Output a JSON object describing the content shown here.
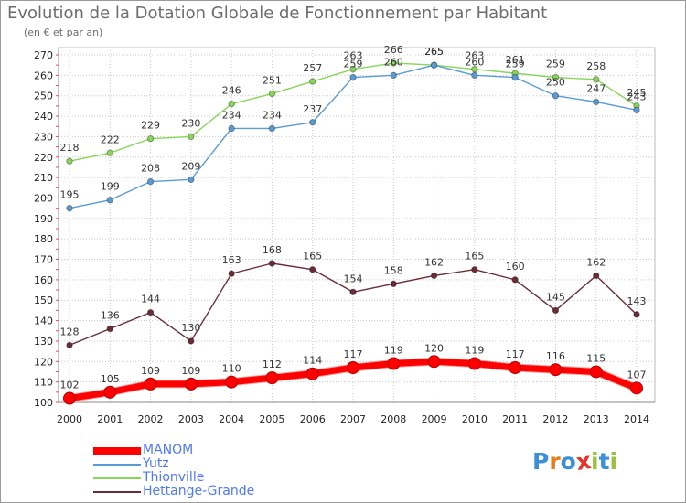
{
  "title": "Evolution de la Dotation Globale de Fonctionnement par Habitant",
  "subtitle": "(en € et par an)",
  "brand": {
    "text": "Proxiti",
    "letters": [
      "P",
      "r",
      "o",
      "x",
      "i",
      "t",
      "i"
    ],
    "colors": [
      "#3c8fd6",
      "#e87b1c",
      "#3c8fd6",
      "#e8332a",
      "#9ac23c",
      "#3c8fd6",
      "#9ac23c"
    ]
  },
  "chart_data": {
    "type": "line",
    "x": [
      2000,
      2001,
      2002,
      2003,
      2004,
      2005,
      2006,
      2007,
      2008,
      2009,
      2010,
      2011,
      2012,
      2013,
      2014
    ],
    "ylim": [
      100,
      270
    ],
    "yticks": [
      100,
      110,
      120,
      130,
      140,
      150,
      160,
      170,
      180,
      190,
      200,
      210,
      220,
      230,
      240,
      250,
      260,
      270
    ],
    "grid": true,
    "legend": "bottom-left",
    "series": [
      {
        "name": "MANOM",
        "color": "#ff0000",
        "values": [
          102,
          105,
          109,
          109,
          110,
          112,
          114,
          117,
          119,
          120,
          119,
          117,
          116,
          115,
          107
        ]
      },
      {
        "name": "Yutz",
        "color": "#5b9bd5",
        "values": [
          195,
          199,
          208,
          209,
          234,
          234,
          237,
          259,
          260,
          265,
          260,
          259,
          250,
          247,
          243
        ]
      },
      {
        "name": "Thionville",
        "color": "#88d65a",
        "values": [
          218,
          222,
          229,
          230,
          246,
          251,
          257,
          263,
          266,
          265,
          263,
          261,
          259,
          258,
          245
        ]
      },
      {
        "name": "Hettange-Grande",
        "color": "#6b2c37",
        "values": [
          128,
          136,
          144,
          130,
          163,
          168,
          165,
          154,
          158,
          162,
          165,
          160,
          145,
          162,
          143
        ]
      }
    ]
  }
}
